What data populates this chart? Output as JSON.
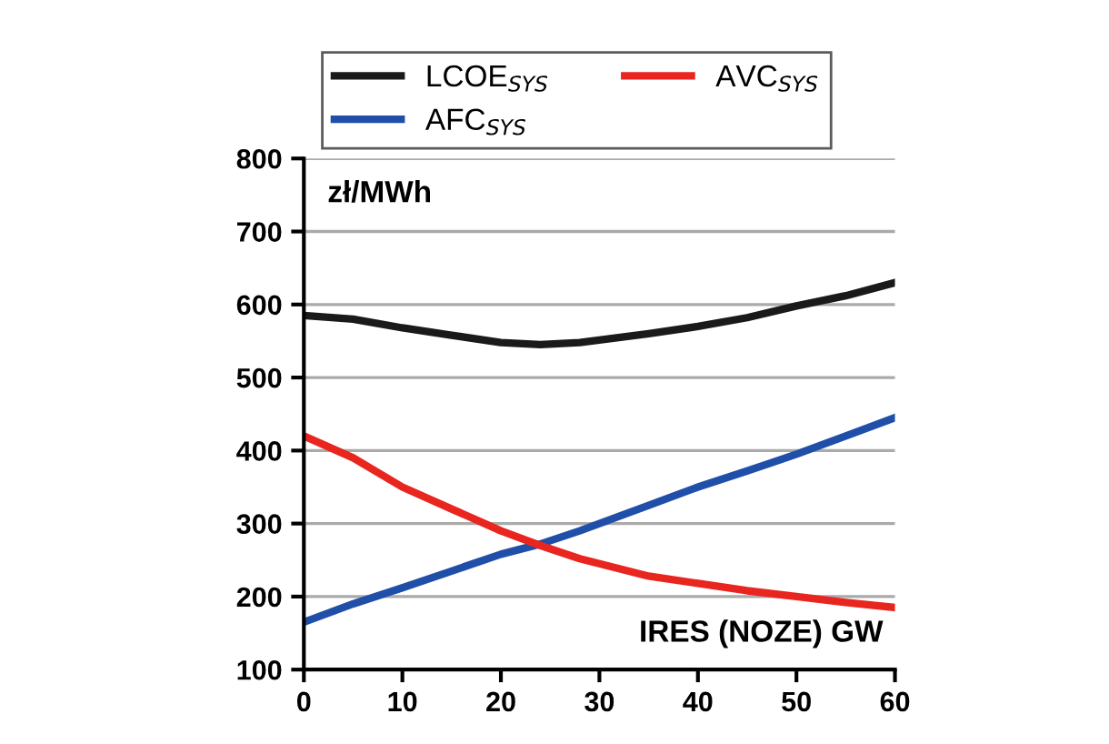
{
  "chart_data": {
    "type": "line",
    "xlabel": "IRES (NOZE) GW",
    "ylabel": "zł/MWh",
    "x": [
      0,
      5,
      10,
      15,
      20,
      24,
      28,
      35,
      40,
      45,
      50,
      55,
      60
    ],
    "series": [
      {
        "name": "LCOE$_{SYS}$",
        "color": "#1a1a1a",
        "values": [
          585,
          580,
          568,
          558,
          548,
          545,
          548,
          560,
          570,
          582,
          598,
          612,
          630
        ]
      },
      {
        "name": "AFC$_{SYS}$",
        "color": "#1f4fa8",
        "values": [
          165,
          190,
          212,
          235,
          258,
          272,
          290,
          325,
          350,
          372,
          395,
          420,
          445
        ]
      },
      {
        "name": "AVC$_{SYS}$",
        "color": "#e8261f",
        "values": [
          420,
          390,
          350,
          320,
          290,
          270,
          252,
          228,
          218,
          208,
          200,
          192,
          185
        ]
      }
    ],
    "xlim": [
      0,
      60
    ],
    "xticks": [
      0,
      10,
      20,
      30,
      40,
      50,
      60
    ],
    "ylim": [
      100,
      800
    ],
    "yticks": [
      100,
      200,
      300,
      400,
      500,
      600,
      700,
      800
    ],
    "grid": "y",
    "legend": "top",
    "marker": "none",
    "line_style": "solid"
  }
}
